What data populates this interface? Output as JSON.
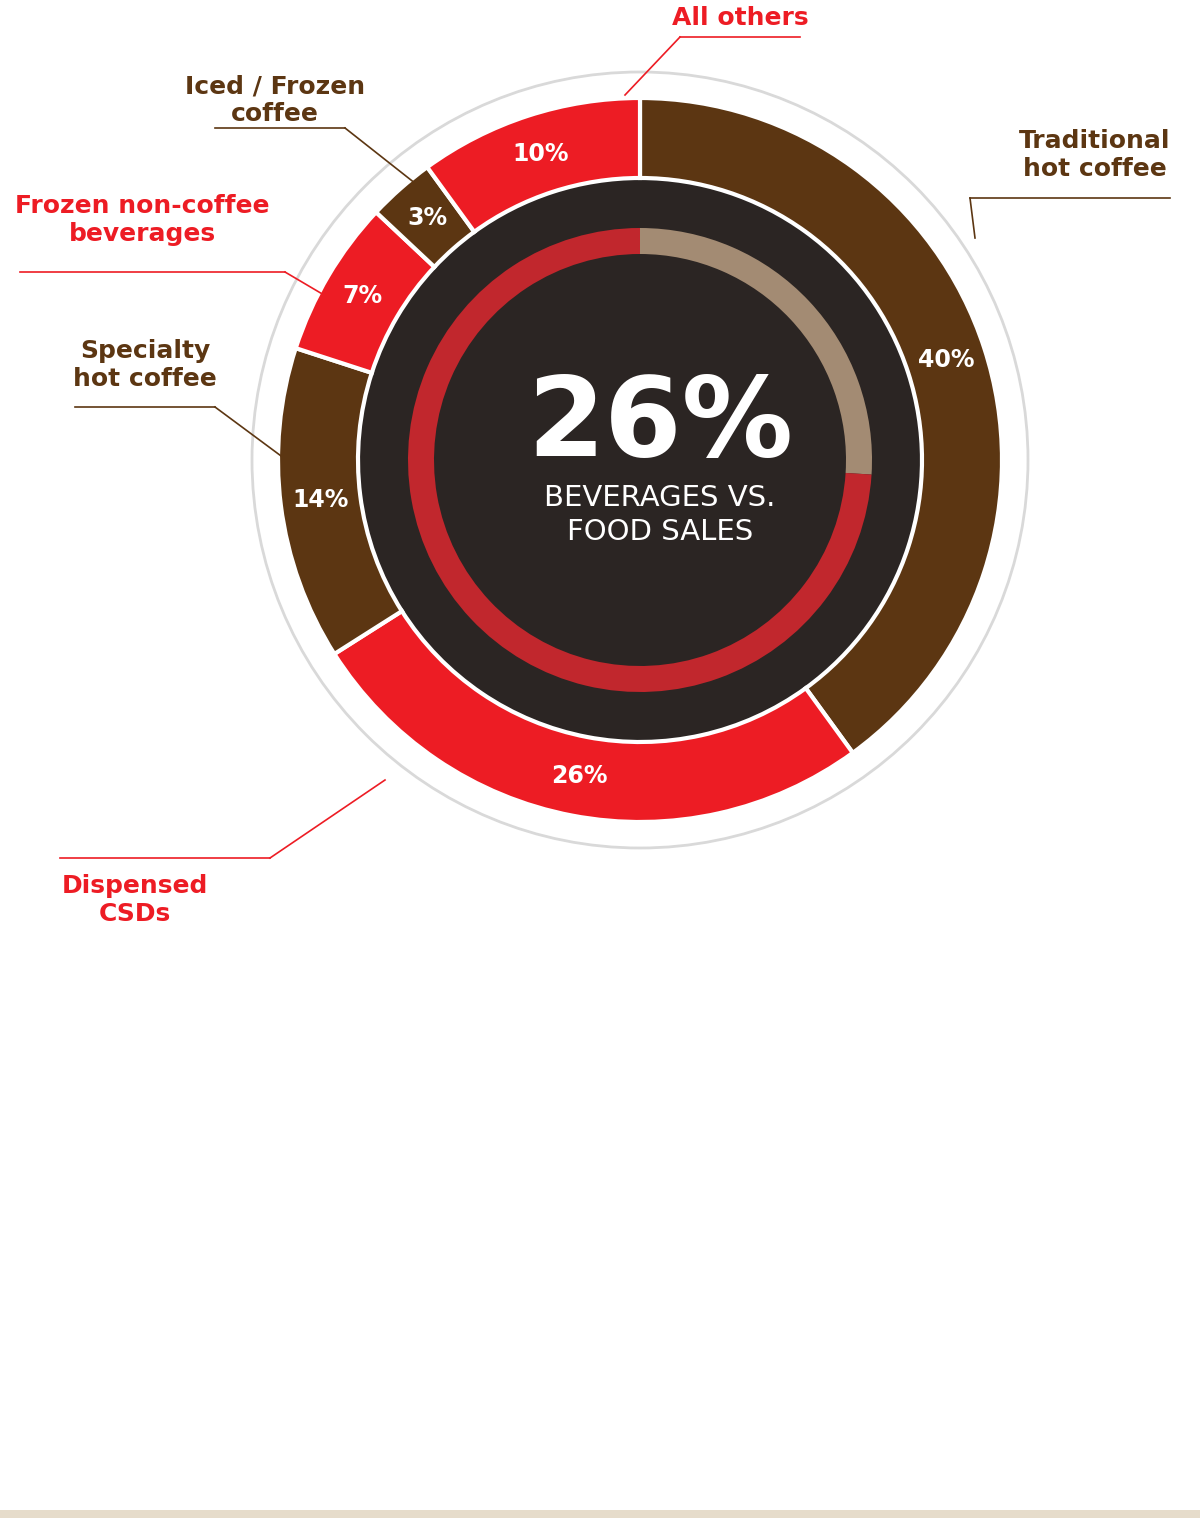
{
  "chart_data": {
    "type": "donut",
    "categories": [
      "Traditional hot coffee",
      "Dispensed CSDs",
      "Specialty hot coffee",
      "Frozen non-coffee beverages",
      "Iced / Frozen coffee",
      "All others"
    ],
    "values": [
      40,
      26,
      14,
      7,
      3,
      10
    ],
    "value_labels": [
      "40%",
      "26%",
      "14%",
      "7%",
      "3%",
      "10%"
    ],
    "colors": [
      "#5c3612",
      "#ed1c24",
      "#5c3612",
      "#ed1c24",
      "#5c3612",
      "#ed1c24"
    ],
    "data_labels": true,
    "center": {
      "value": 26,
      "value_label": "26%",
      "text": "BEVERAGES VS. FOOD SALES",
      "ring": {
        "values": [
          26,
          74
        ],
        "colors": [
          "#a38b73",
          "#c1272d"
        ]
      }
    }
  }
}
